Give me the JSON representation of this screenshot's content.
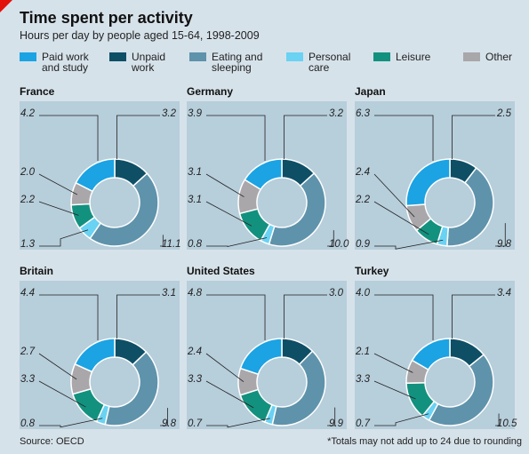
{
  "title": "Time spent per activity",
  "subtitle": "Hours per day by people aged 15-64, 1998-2009",
  "source": "Source: OECD",
  "footnote": "*Totals may not add up to 24 due to rounding",
  "legend": [
    {
      "label": "Paid work\nand study",
      "color": "#1ba3e3"
    },
    {
      "label": "Unpaid\nwork",
      "color": "#0e4f66"
    },
    {
      "label": "Eating and\nsleeping",
      "color": "#5e93ab"
    },
    {
      "label": "Personal\ncare",
      "color": "#6ad2f3"
    },
    {
      "label": "Leisure",
      "color": "#13917f"
    },
    {
      "label": "Other",
      "color": "#a9a7aa"
    }
  ],
  "chart_data": {
    "type": "pie",
    "variant": "donut",
    "categories": [
      "Paid work and study",
      "Unpaid work",
      "Eating and sleeping",
      "Personal care",
      "Leisure",
      "Other"
    ],
    "title": "Time spent per activity",
    "subtitle": "Hours per day by people aged 15-64, 1998-2009",
    "panels": [
      {
        "name": "France",
        "values": [
          4.2,
          3.2,
          11.1,
          1.3,
          2.2,
          2.0
        ]
      },
      {
        "name": "Germany",
        "values": [
          3.9,
          3.2,
          10.0,
          0.8,
          3.1,
          3.1
        ]
      },
      {
        "name": "Japan",
        "values": [
          6.3,
          2.5,
          9.8,
          0.9,
          2.2,
          2.4
        ]
      },
      {
        "name": "Britain",
        "values": [
          4.4,
          3.1,
          9.8,
          0.8,
          3.3,
          2.7
        ]
      },
      {
        "name": "United States",
        "values": [
          4.8,
          3.0,
          9.9,
          0.7,
          3.3,
          2.4
        ]
      },
      {
        "name": "Turkey",
        "values": [
          4.0,
          3.4,
          10.5,
          0.7,
          3.3,
          2.1
        ]
      }
    ]
  }
}
